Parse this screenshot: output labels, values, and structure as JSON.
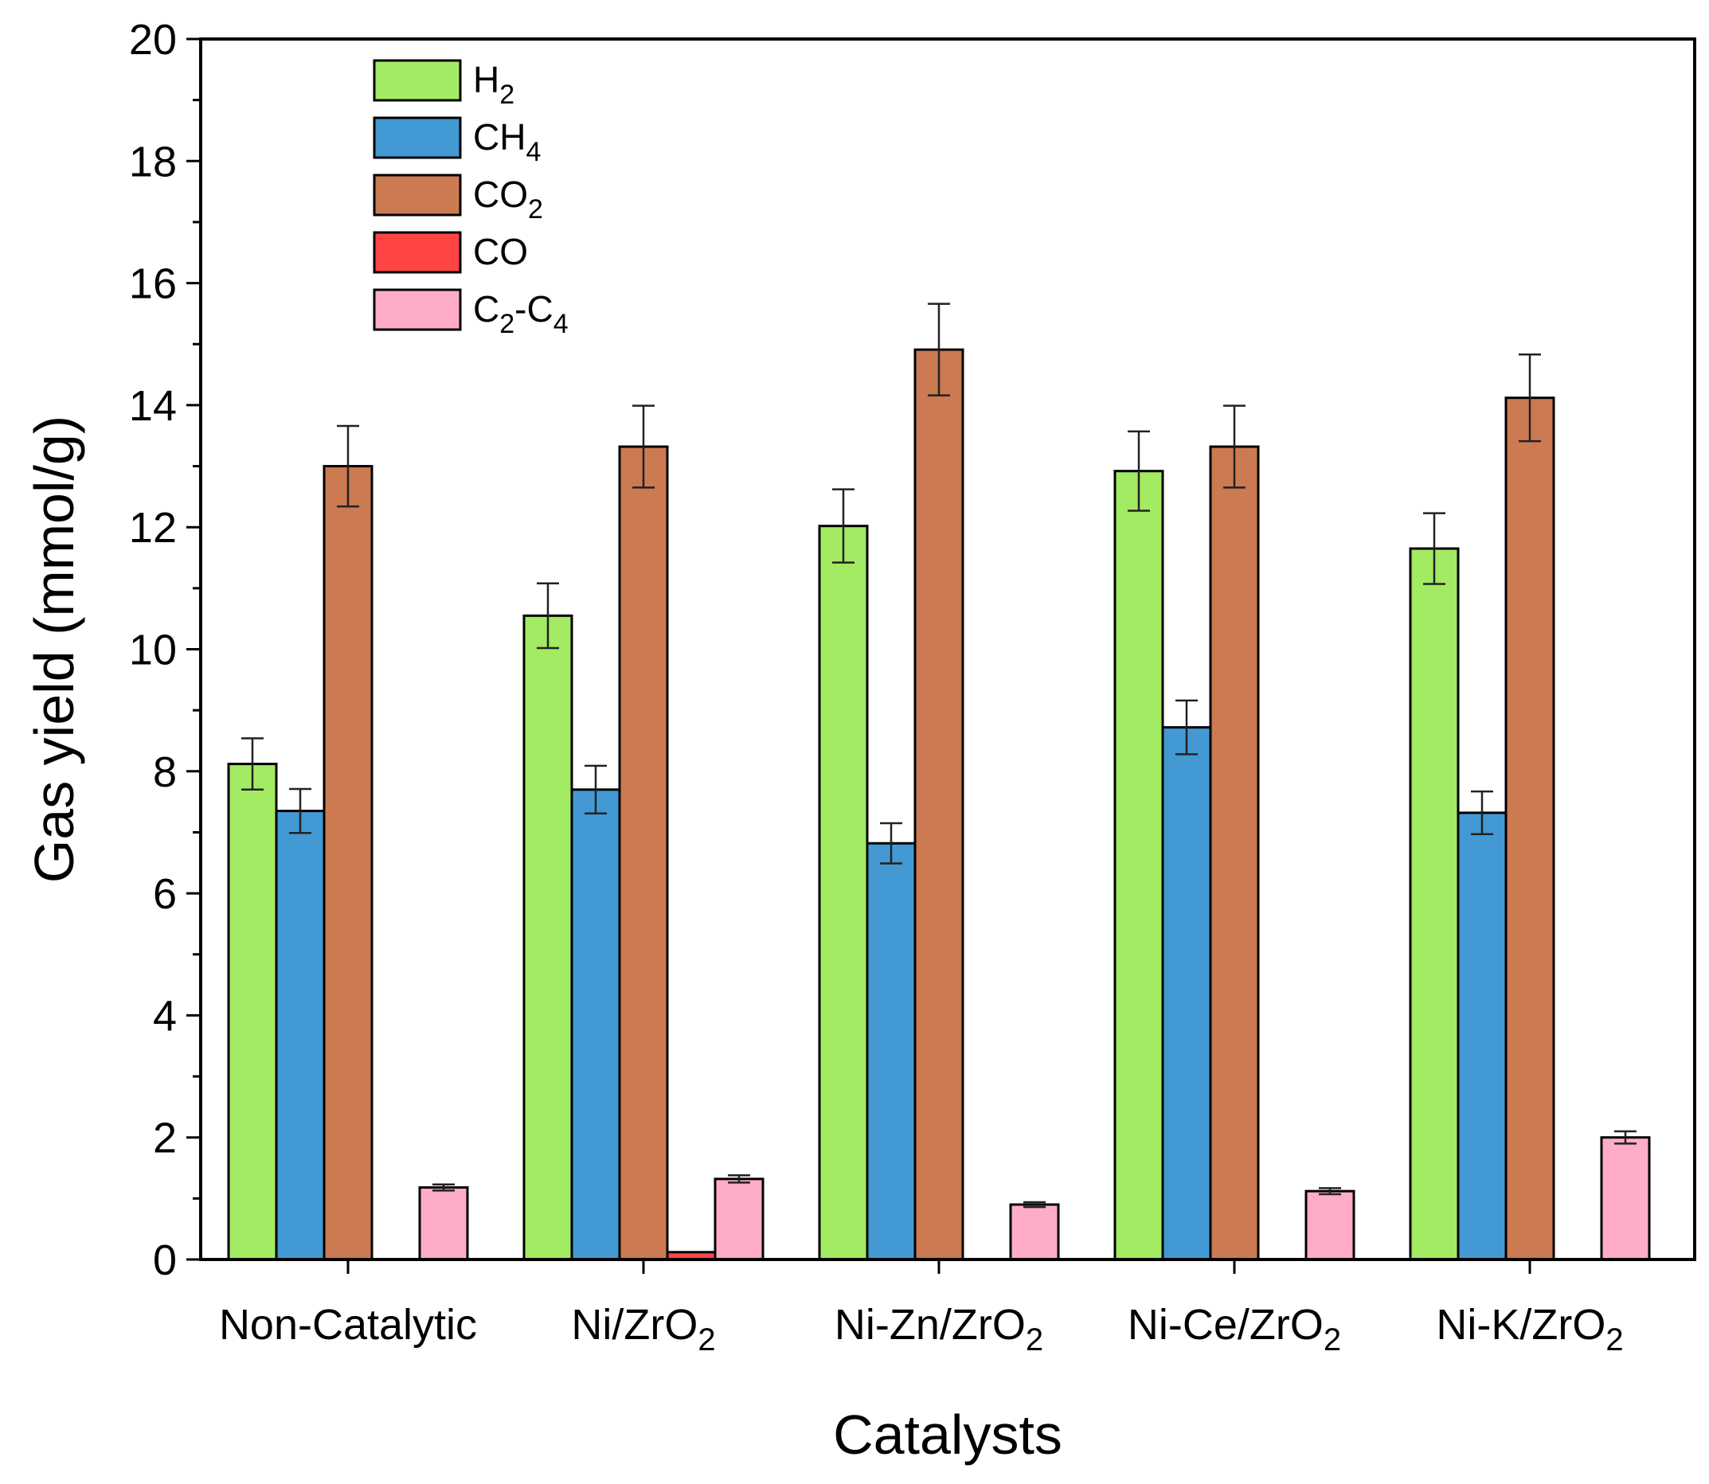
{
  "chart_data": {
    "type": "bar",
    "xlabel": "Catalysts",
    "ylabel": "Gas yield (mmol/g)",
    "ylim": [
      0,
      20
    ],
    "yticks": [
      0,
      2,
      4,
      6,
      8,
      10,
      12,
      14,
      16,
      18,
      20
    ],
    "y_minor_step": 1,
    "legend_position": "top-left",
    "grid": false,
    "categories": [
      {
        "base": "Non-Catalytic",
        "sub": "",
        "tail": ""
      },
      {
        "base": "Ni/ZrO",
        "sub": "2",
        "tail": ""
      },
      {
        "base": "Ni-Zn/ZrO",
        "sub": "2",
        "tail": ""
      },
      {
        "base": "Ni-Ce/ZrO",
        "sub": "2",
        "tail": ""
      },
      {
        "base": "Ni-K/ZrO",
        "sub": "2",
        "tail": ""
      }
    ],
    "series": [
      {
        "base": "H",
        "sub": "2",
        "mid": "",
        "sub2": "",
        "color": "#A2EB62",
        "values": [
          8.12,
          10.55,
          12.02,
          12.92,
          11.65
        ],
        "errors": [
          0.42,
          0.53,
          0.6,
          0.65,
          0.58
        ]
      },
      {
        "base": "CH",
        "sub": "4",
        "mid": "",
        "sub2": "",
        "color": "#4399D3",
        "values": [
          7.35,
          7.7,
          6.82,
          8.72,
          7.32
        ],
        "errors": [
          0.36,
          0.39,
          0.33,
          0.44,
          0.35
        ]
      },
      {
        "base": "CO",
        "sub": "2",
        "mid": "",
        "sub2": "",
        "color": "#CC7A52",
        "values": [
          13.0,
          13.32,
          14.91,
          13.32,
          14.12
        ],
        "errors": [
          0.66,
          0.67,
          0.75,
          0.67,
          0.71
        ]
      },
      {
        "base": "CO",
        "sub": "",
        "mid": "",
        "sub2": "",
        "color": "#FF4444",
        "values": [
          0,
          0.12,
          0,
          0,
          0
        ],
        "errors": [
          0,
          0,
          0,
          0,
          0
        ]
      },
      {
        "base": "C",
        "sub": "2",
        "mid": "-C",
        "sub2": "4",
        "color": "#FFACC9",
        "values": [
          1.18,
          1.32,
          0.9,
          1.12,
          2.0
        ],
        "errors": [
          0.05,
          0.06,
          0.04,
          0.05,
          0.1
        ]
      }
    ]
  }
}
